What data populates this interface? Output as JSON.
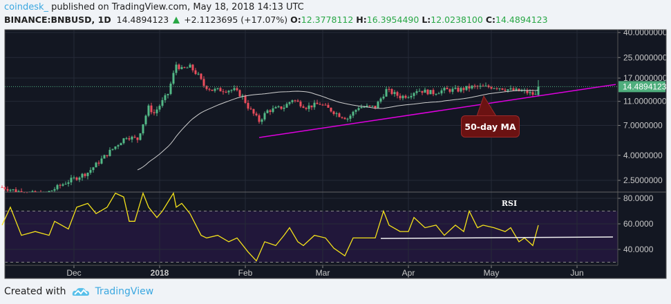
{
  "header": {
    "publisher": "coindesk_",
    "published_text": "published on TradingView.com, May 18, 2018 14:13 UTC",
    "symbol": "BINANCE:BNBUSD, 1D",
    "last": "14.4894123",
    "change": "+2.1123695 (+17.07%)",
    "o_label": "O:",
    "o": "12.3778112",
    "h_label": "H:",
    "h": "16.3954490",
    "l_label": "L:",
    "l": "12.0238100",
    "c_label": "C:",
    "c": "14.4894123"
  },
  "footer": {
    "created_with": "Created with",
    "brand": "TradingView",
    "logo_icon": "tradingview-cloud-icon"
  },
  "annotation": {
    "text": "50-day MA"
  },
  "colors": {
    "background": "#131722",
    "grid": "#262b38",
    "up": "#53b987",
    "down": "#eb4d5c",
    "ma": "#d0d0d0",
    "trendline": "#e100e1",
    "rsi": "#f5e31a",
    "rsi_band": "#21173a",
    "price_label_bg": "#4fae7d"
  },
  "chart_data": [
    {
      "type": "candlestick",
      "scale": "log",
      "interval": "1D",
      "y_ticks": [
        "40.0000000",
        "25.0000000",
        "17.0000000",
        "11.0000000",
        "7.0000000",
        "4.0000000",
        "2.5000000"
      ],
      "y_tick_values": [
        40,
        25,
        17,
        11,
        7,
        4,
        2.5
      ],
      "x_ticks": [
        {
          "label": "Dec",
          "date": "2017-12-01"
        },
        {
          "label": "2018",
          "date": "2018-01-01",
          "bold": true
        },
        {
          "label": "Feb",
          "date": "2018-02-01"
        },
        {
          "label": "Mar",
          "date": "2018-03-01"
        },
        {
          "label": "Apr",
          "date": "2018-04-01"
        },
        {
          "label": "May",
          "date": "2018-05-01"
        },
        {
          "label": "Jun",
          "date": "2018-06-01"
        }
      ],
      "current_price_label": "14.4894123",
      "approx_close_path": [
        [
          "2017-11-05",
          2.2
        ],
        [
          "2017-11-12",
          2.0
        ],
        [
          "2017-11-20",
          1.9
        ],
        [
          "2017-11-28",
          2.4
        ],
        [
          "2017-12-06",
          2.9
        ],
        [
          "2017-12-14",
          4.3
        ],
        [
          "2017-12-20",
          5.7
        ],
        [
          "2017-12-24",
          5.4
        ],
        [
          "2017-12-28",
          9.8
        ],
        [
          "2017-12-30",
          8.8
        ],
        [
          "2018-01-04",
          12.7
        ],
        [
          "2018-01-07",
          22
        ],
        [
          "2018-01-09",
          20
        ],
        [
          "2018-01-12",
          21
        ],
        [
          "2018-01-15",
          17.8
        ],
        [
          "2018-01-17",
          14.8
        ],
        [
          "2018-01-20",
          13.6
        ],
        [
          "2018-01-28",
          13.6
        ],
        [
          "2018-01-31",
          12
        ],
        [
          "2018-02-02",
          9.9
        ],
        [
          "2018-02-06",
          7.6
        ],
        [
          "2018-02-09",
          9.2
        ],
        [
          "2018-02-15",
          9.9
        ],
        [
          "2018-02-18",
          11.4
        ],
        [
          "2018-02-23",
          9.9
        ],
        [
          "2018-02-28",
          10.5
        ],
        [
          "2018-03-07",
          8.5
        ],
        [
          "2018-03-10",
          8.0
        ],
        [
          "2018-03-14",
          9.9
        ],
        [
          "2018-03-20",
          9.9
        ],
        [
          "2018-03-24",
          13.6
        ],
        [
          "2018-03-29",
          12
        ],
        [
          "2018-04-01",
          12.3
        ],
        [
          "2018-04-04",
          13.6
        ],
        [
          "2018-04-10",
          12.9
        ],
        [
          "2018-04-14",
          13.6
        ],
        [
          "2018-04-19",
          13.6
        ],
        [
          "2018-04-24",
          14.4
        ],
        [
          "2018-04-29",
          14.4
        ],
        [
          "2018-05-03",
          14.4
        ],
        [
          "2018-05-08",
          13.6
        ],
        [
          "2018-05-13",
          13.2
        ],
        [
          "2018-05-17",
          12.38
        ]
      ],
      "last_candle": {
        "date": "2018-05-18",
        "open": 12.3778112,
        "high": 16.395449,
        "low": 12.02381,
        "close": 14.4894123
      },
      "moving_average": {
        "label": "50-day MA",
        "period": 50
      },
      "trendline": {
        "from": [
          "2018-02-06",
          5.58
        ],
        "to": [
          "2018-06-15",
          15.1
        ]
      }
    },
    {
      "type": "line",
      "title": "RSI",
      "y_ticks": [
        "80.0000",
        "60.0000",
        "40.0000"
      ],
      "y_tick_values": [
        80,
        60,
        40
      ],
      "bands": [
        70,
        30
      ],
      "values": [
        [
          "2017-11-05",
          59
        ],
        [
          "2017-11-08",
          73
        ],
        [
          "2017-11-12",
          51
        ],
        [
          "2017-11-17",
          54
        ],
        [
          "2017-11-22",
          51
        ],
        [
          "2017-11-24",
          62
        ],
        [
          "2017-11-29",
          56
        ],
        [
          "2017-12-02",
          73
        ],
        [
          "2017-12-06",
          76
        ],
        [
          "2017-12-09",
          68
        ],
        [
          "2017-12-13",
          73
        ],
        [
          "2017-12-16",
          84
        ],
        [
          "2017-12-19",
          81
        ],
        [
          "2017-12-21",
          62
        ],
        [
          "2017-12-23",
          62
        ],
        [
          "2017-12-26",
          84
        ],
        [
          "2017-12-28",
          73
        ],
        [
          "2017-12-31",
          65
        ],
        [
          "2018-01-02",
          70
        ],
        [
          "2018-01-06",
          84
        ],
        [
          "2018-01-07",
          73
        ],
        [
          "2018-01-09",
          76
        ],
        [
          "2018-01-12",
          68
        ],
        [
          "2018-01-16",
          51
        ],
        [
          "2018-01-18",
          49
        ],
        [
          "2018-01-22",
          51
        ],
        [
          "2018-01-26",
          46
        ],
        [
          "2018-01-29",
          49
        ],
        [
          "2018-02-02",
          38
        ],
        [
          "2018-02-05",
          31
        ],
        [
          "2018-02-08",
          46
        ],
        [
          "2018-02-12",
          43
        ],
        [
          "2018-02-15",
          51
        ],
        [
          "2018-02-17",
          57
        ],
        [
          "2018-02-20",
          46
        ],
        [
          "2018-02-22",
          43
        ],
        [
          "2018-02-26",
          51
        ],
        [
          "2018-03-02",
          49
        ],
        [
          "2018-03-05",
          41
        ],
        [
          "2018-03-09",
          35
        ],
        [
          "2018-03-12",
          49
        ],
        [
          "2018-03-17",
          49
        ],
        [
          "2018-03-20",
          49
        ],
        [
          "2018-03-23",
          70
        ],
        [
          "2018-03-25",
          59
        ],
        [
          "2018-03-29",
          54
        ],
        [
          "2018-04-01",
          54
        ],
        [
          "2018-04-03",
          65
        ],
        [
          "2018-04-07",
          57
        ],
        [
          "2018-04-11",
          59
        ],
        [
          "2018-04-14",
          51
        ],
        [
          "2018-04-18",
          59
        ],
        [
          "2018-04-21",
          54
        ],
        [
          "2018-04-23",
          70
        ],
        [
          "2018-04-26",
          57
        ],
        [
          "2018-04-28",
          59
        ],
        [
          "2018-05-02",
          57
        ],
        [
          "2018-05-06",
          54
        ],
        [
          "2018-05-08",
          57
        ],
        [
          "2018-05-11",
          46
        ],
        [
          "2018-05-13",
          49
        ],
        [
          "2018-05-16",
          43
        ],
        [
          "2018-05-18",
          59
        ]
      ],
      "trendline": {
        "from": [
          "2018-03-22",
          48.6
        ],
        "to": [
          "2018-06-14",
          49.7
        ]
      }
    }
  ]
}
